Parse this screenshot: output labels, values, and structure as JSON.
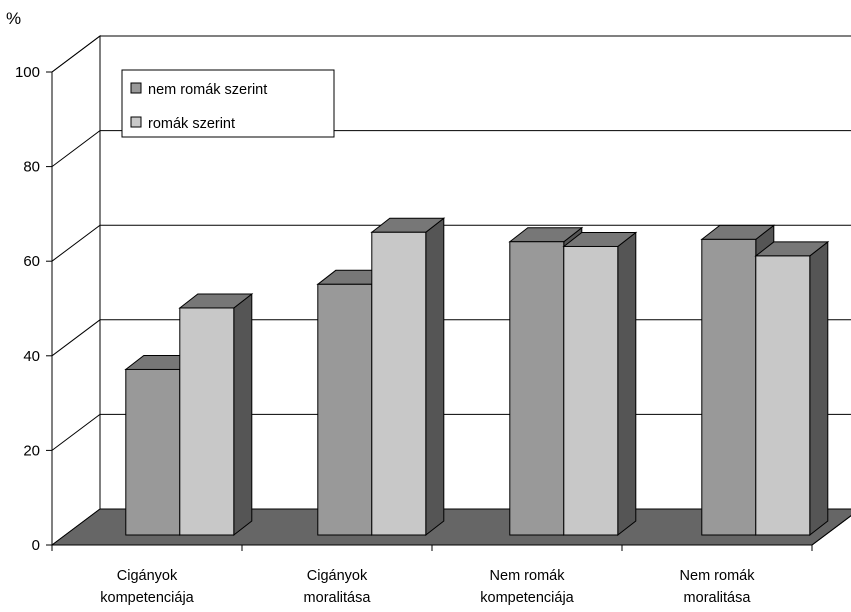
{
  "chart_data": {
    "type": "bar",
    "unit_label": "%",
    "categories": [
      [
        "Cigányok",
        "kompetenciája"
      ],
      [
        "Cigányok",
        "moralitása"
      ],
      [
        "Nem romák",
        "kompetenciája"
      ],
      [
        "Nem romák",
        "moralitása"
      ]
    ],
    "series": [
      {
        "name": "nem romák szerint",
        "values": [
          35,
          53,
          62,
          62.5
        ],
        "color": "#999999"
      },
      {
        "name": "romák szerint",
        "values": [
          48,
          64,
          61,
          59
        ],
        "color": "#c8c8c8"
      }
    ],
    "yticks": [
      "0",
      "20",
      "40",
      "60",
      "80",
      "100"
    ],
    "ylim": [
      0,
      100
    ],
    "grid": true,
    "legend": "top-left",
    "style": "3d-bar",
    "colors": {
      "floor": "#666666",
      "bar_side": "#555555",
      "bar_top": "#777777"
    }
  }
}
